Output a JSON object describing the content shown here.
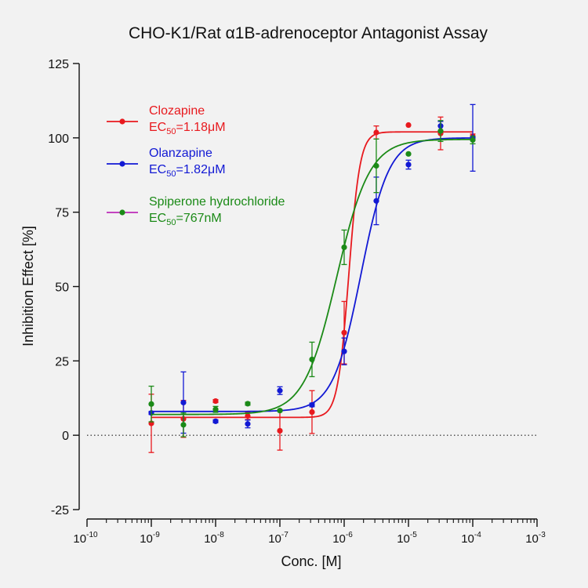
{
  "chart_data": {
    "type": "scatter",
    "title": "CHO-K1/Rat α1B-adrenoceptor Antagonist Assay",
    "xlabel": "Conc. [M]",
    "ylabel": "Inhibition Effect [%]",
    "x_scale": "log10",
    "xlim": [
      1e-10,
      0.001
    ],
    "ylim": [
      -25,
      125
    ],
    "x_tick_exponents": [
      -10,
      -9,
      -8,
      -7,
      -6,
      -5,
      -4,
      -3
    ],
    "x_tick_base": "10",
    "y_ticks": [
      -25,
      0,
      25,
      50,
      75,
      100,
      125
    ],
    "baseline": {
      "y": 0,
      "style": "dotted"
    },
    "legend_position": "top-left",
    "series": [
      {
        "name": "Clozapine",
        "ec50_label": "=1.18μM",
        "color": "#e8191e",
        "x": [
          1e-09,
          3.16e-09,
          1e-08,
          3.16e-08,
          1e-07,
          3.16e-07,
          1e-06,
          3.16e-06,
          1e-05,
          3.16e-05,
          0.0001
        ],
        "y": [
          4,
          5.5,
          11.5,
          6.5,
          1.5,
          7.8,
          34.5,
          101.8,
          104.3,
          101.5,
          100.5
        ],
        "err": [
          9.8,
          6.2,
          0.5,
          1.2,
          6.5,
          7.2,
          10.5,
          2.2,
          0,
          5.5,
          0.8
        ],
        "fit": {
          "bottom": 6,
          "top": 102,
          "ec50": 1.18e-06,
          "hill": 5
        }
      },
      {
        "name": "Olanzapine",
        "ec50_label": "=1.82μM",
        "color": "#1219d4",
        "x": [
          1e-09,
          3.16e-09,
          1e-08,
          3.16e-08,
          1e-07,
          3.16e-07,
          1e-06,
          3.16e-06,
          1e-05,
          3.16e-05,
          0.0001
        ],
        "y": [
          7.5,
          11,
          4.7,
          3.8,
          15,
          10.2,
          28.2,
          78.8,
          91,
          104,
          100
        ],
        "err": [
          0.5,
          10.3,
          0.5,
          1.3,
          1.3,
          0.6,
          4.5,
          8,
          1.5,
          1.5,
          11.2
        ],
        "fit": {
          "bottom": 8,
          "top": 100,
          "ec50": 1.82e-06,
          "hill": 2
        }
      },
      {
        "name": "Spiperone hydrochloride",
        "ec50_label": "=767nM",
        "color": "#1b8a17",
        "legend_line_color": "#bc2ab8",
        "x": [
          1e-09,
          3.16e-09,
          1e-08,
          3.16e-08,
          1e-07,
          3.16e-07,
          1e-06,
          3.16e-06,
          1e-05,
          3.16e-05,
          0.0001
        ],
        "y": [
          10.5,
          3.5,
          8.7,
          10.6,
          8.3,
          25.5,
          63.2,
          90.6,
          94.6,
          102.3,
          99.3
        ],
        "err": [
          6,
          4,
          1,
          0.5,
          0.3,
          5.8,
          5.8,
          9,
          0,
          3.5,
          1.3
        ],
        "fit": {
          "bottom": 7,
          "top": 99.5,
          "ec50": 7.67e-07,
          "hill": 1.7
        }
      }
    ]
  }
}
